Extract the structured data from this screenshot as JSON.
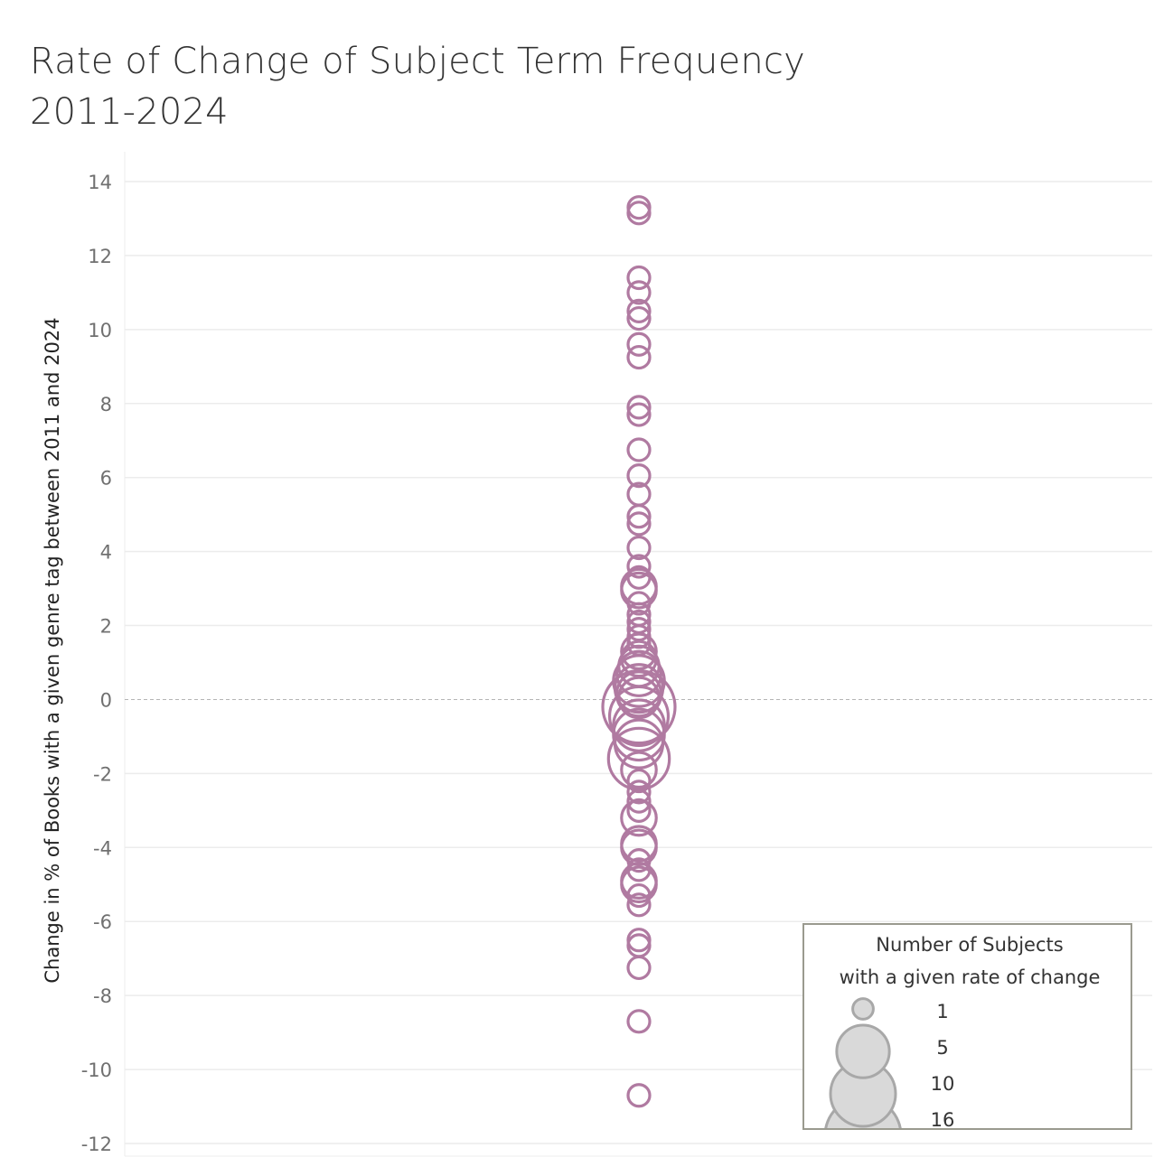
{
  "chart_data": {
    "type": "scatter",
    "title": [
      "Rate of Change of Subject Term Frequency",
      "2011-2024"
    ],
    "ylabel": "Change in % of Books with a given genre tag between 2011 and 2024",
    "xlabel": "",
    "ylim": [
      -12,
      14
    ],
    "yticks": [
      14,
      12,
      10,
      8,
      6,
      4,
      2,
      0,
      -2,
      -4,
      -6,
      -8,
      -10,
      -12
    ],
    "ytick_labels": [
      "14",
      "12",
      "10",
      "8",
      "6",
      "4",
      "2",
      "0",
      "-2",
      "-4",
      "-6",
      "-8",
      "-10",
      "-12"
    ],
    "grid": true,
    "zero_line": true,
    "marker": "hollow-circle",
    "color": "#b07aa1",
    "points": [
      {
        "y": 13.3,
        "count": 1
      },
      {
        "y": 13.15,
        "count": 1
      },
      {
        "y": 11.4,
        "count": 1
      },
      {
        "y": 11.0,
        "count": 1
      },
      {
        "y": 10.5,
        "count": 1
      },
      {
        "y": 10.3,
        "count": 1
      },
      {
        "y": 9.6,
        "count": 1
      },
      {
        "y": 9.25,
        "count": 1
      },
      {
        "y": 7.9,
        "count": 1
      },
      {
        "y": 7.7,
        "count": 1
      },
      {
        "y": 6.75,
        "count": 1
      },
      {
        "y": 6.05,
        "count": 1
      },
      {
        "y": 5.55,
        "count": 1
      },
      {
        "y": 4.95,
        "count": 1
      },
      {
        "y": 4.75,
        "count": 1
      },
      {
        "y": 4.1,
        "count": 1
      },
      {
        "y": 3.6,
        "count": 1
      },
      {
        "y": 3.3,
        "count": 1
      },
      {
        "y": 3.05,
        "count": 2
      },
      {
        "y": 2.95,
        "count": 2
      },
      {
        "y": 2.6,
        "count": 1
      },
      {
        "y": 2.3,
        "count": 1
      },
      {
        "y": 2.1,
        "count": 1
      },
      {
        "y": 1.9,
        "count": 1
      },
      {
        "y": 1.7,
        "count": 1
      },
      {
        "y": 1.5,
        "count": 1
      },
      {
        "y": 1.3,
        "count": 2
      },
      {
        "y": 1.1,
        "count": 2
      },
      {
        "y": 0.9,
        "count": 3
      },
      {
        "y": 0.7,
        "count": 4
      },
      {
        "y": 0.5,
        "count": 6
      },
      {
        "y": 0.3,
        "count": 5
      },
      {
        "y": 0.15,
        "count": 4
      },
      {
        "y": 0.05,
        "count": 3
      },
      {
        "y": -0.2,
        "count": 16
      },
      {
        "y": -0.45,
        "count": 9
      },
      {
        "y": -0.7,
        "count": 6
      },
      {
        "y": -0.95,
        "count": 6
      },
      {
        "y": -1.2,
        "count": 5
      },
      {
        "y": -1.6,
        "count": 10
      },
      {
        "y": -1.9,
        "count": 2
      },
      {
        "y": -2.2,
        "count": 1
      },
      {
        "y": -2.5,
        "count": 1
      },
      {
        "y": -2.75,
        "count": 1
      },
      {
        "y": -3.0,
        "count": 1
      },
      {
        "y": -3.2,
        "count": 2
      },
      {
        "y": -3.9,
        "count": 2
      },
      {
        "y": -4.0,
        "count": 2
      },
      {
        "y": -4.35,
        "count": 1
      },
      {
        "y": -4.6,
        "count": 1
      },
      {
        "y": -4.9,
        "count": 2
      },
      {
        "y": -5.0,
        "count": 2
      },
      {
        "y": -5.3,
        "count": 1
      },
      {
        "y": -5.55,
        "count": 1
      },
      {
        "y": -6.5,
        "count": 1
      },
      {
        "y": -6.65,
        "count": 1
      },
      {
        "y": -7.25,
        "count": 1
      },
      {
        "y": -8.7,
        "count": 1
      },
      {
        "y": -10.7,
        "count": 1
      }
    ],
    "size_legend": {
      "title": [
        "Number of Subjects",
        "with a given rate of change"
      ],
      "entries": [
        {
          "label": "1",
          "count": 1
        },
        {
          "label": "5",
          "count": 5
        },
        {
          "label": "10",
          "count": 10
        },
        {
          "label": "16",
          "count": 16
        }
      ],
      "placement": "bottom-right"
    }
  }
}
